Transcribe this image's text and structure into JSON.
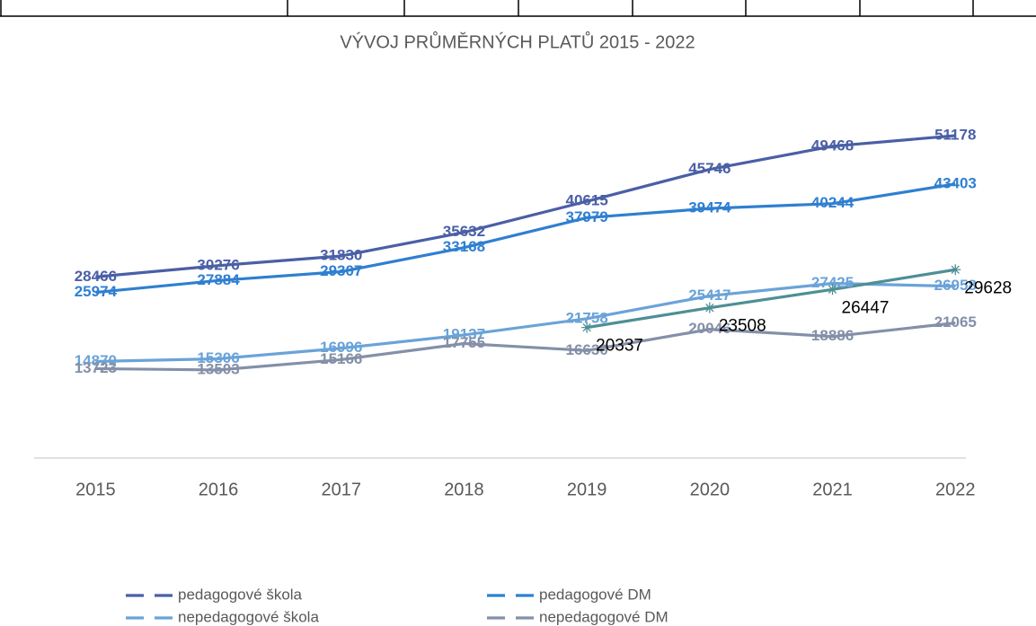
{
  "chart_data": {
    "type": "line",
    "title": "VÝVOJ PRŮMĚRNÝCH PLATŮ 2015 - 2022",
    "categories": [
      "2015",
      "2016",
      "2017",
      "2018",
      "2019",
      "2020",
      "2021",
      "2022"
    ],
    "ylim": [
      0,
      55000
    ],
    "series": [
      {
        "name": "pedagogové škola",
        "color": "#4a5fa6",
        "values": [
          28466,
          30276,
          31830,
          35632,
          40615,
          45746,
          49468,
          51178
        ]
      },
      {
        "name": "pedagogové DM",
        "color": "#2f7fd1",
        "values": [
          25974,
          27884,
          29307,
          33168,
          37979,
          39474,
          40244,
          43403
        ]
      },
      {
        "name": "nepedagogové škola",
        "color": "#6aa3d8",
        "values": [
          14870,
          15306,
          16996,
          19137,
          21758,
          25417,
          27425,
          26958
        ]
      },
      {
        "name": "nepedagogové DM",
        "color": "#8490a8",
        "values": [
          13723,
          13503,
          15166,
          17755,
          16630,
          20046,
          18886,
          21065
        ]
      },
      {
        "color": "#4e8f95",
        "marker": "star",
        "values": [
          null,
          null,
          null,
          null,
          20337,
          23508,
          26447,
          29628
        ]
      }
    ]
  }
}
